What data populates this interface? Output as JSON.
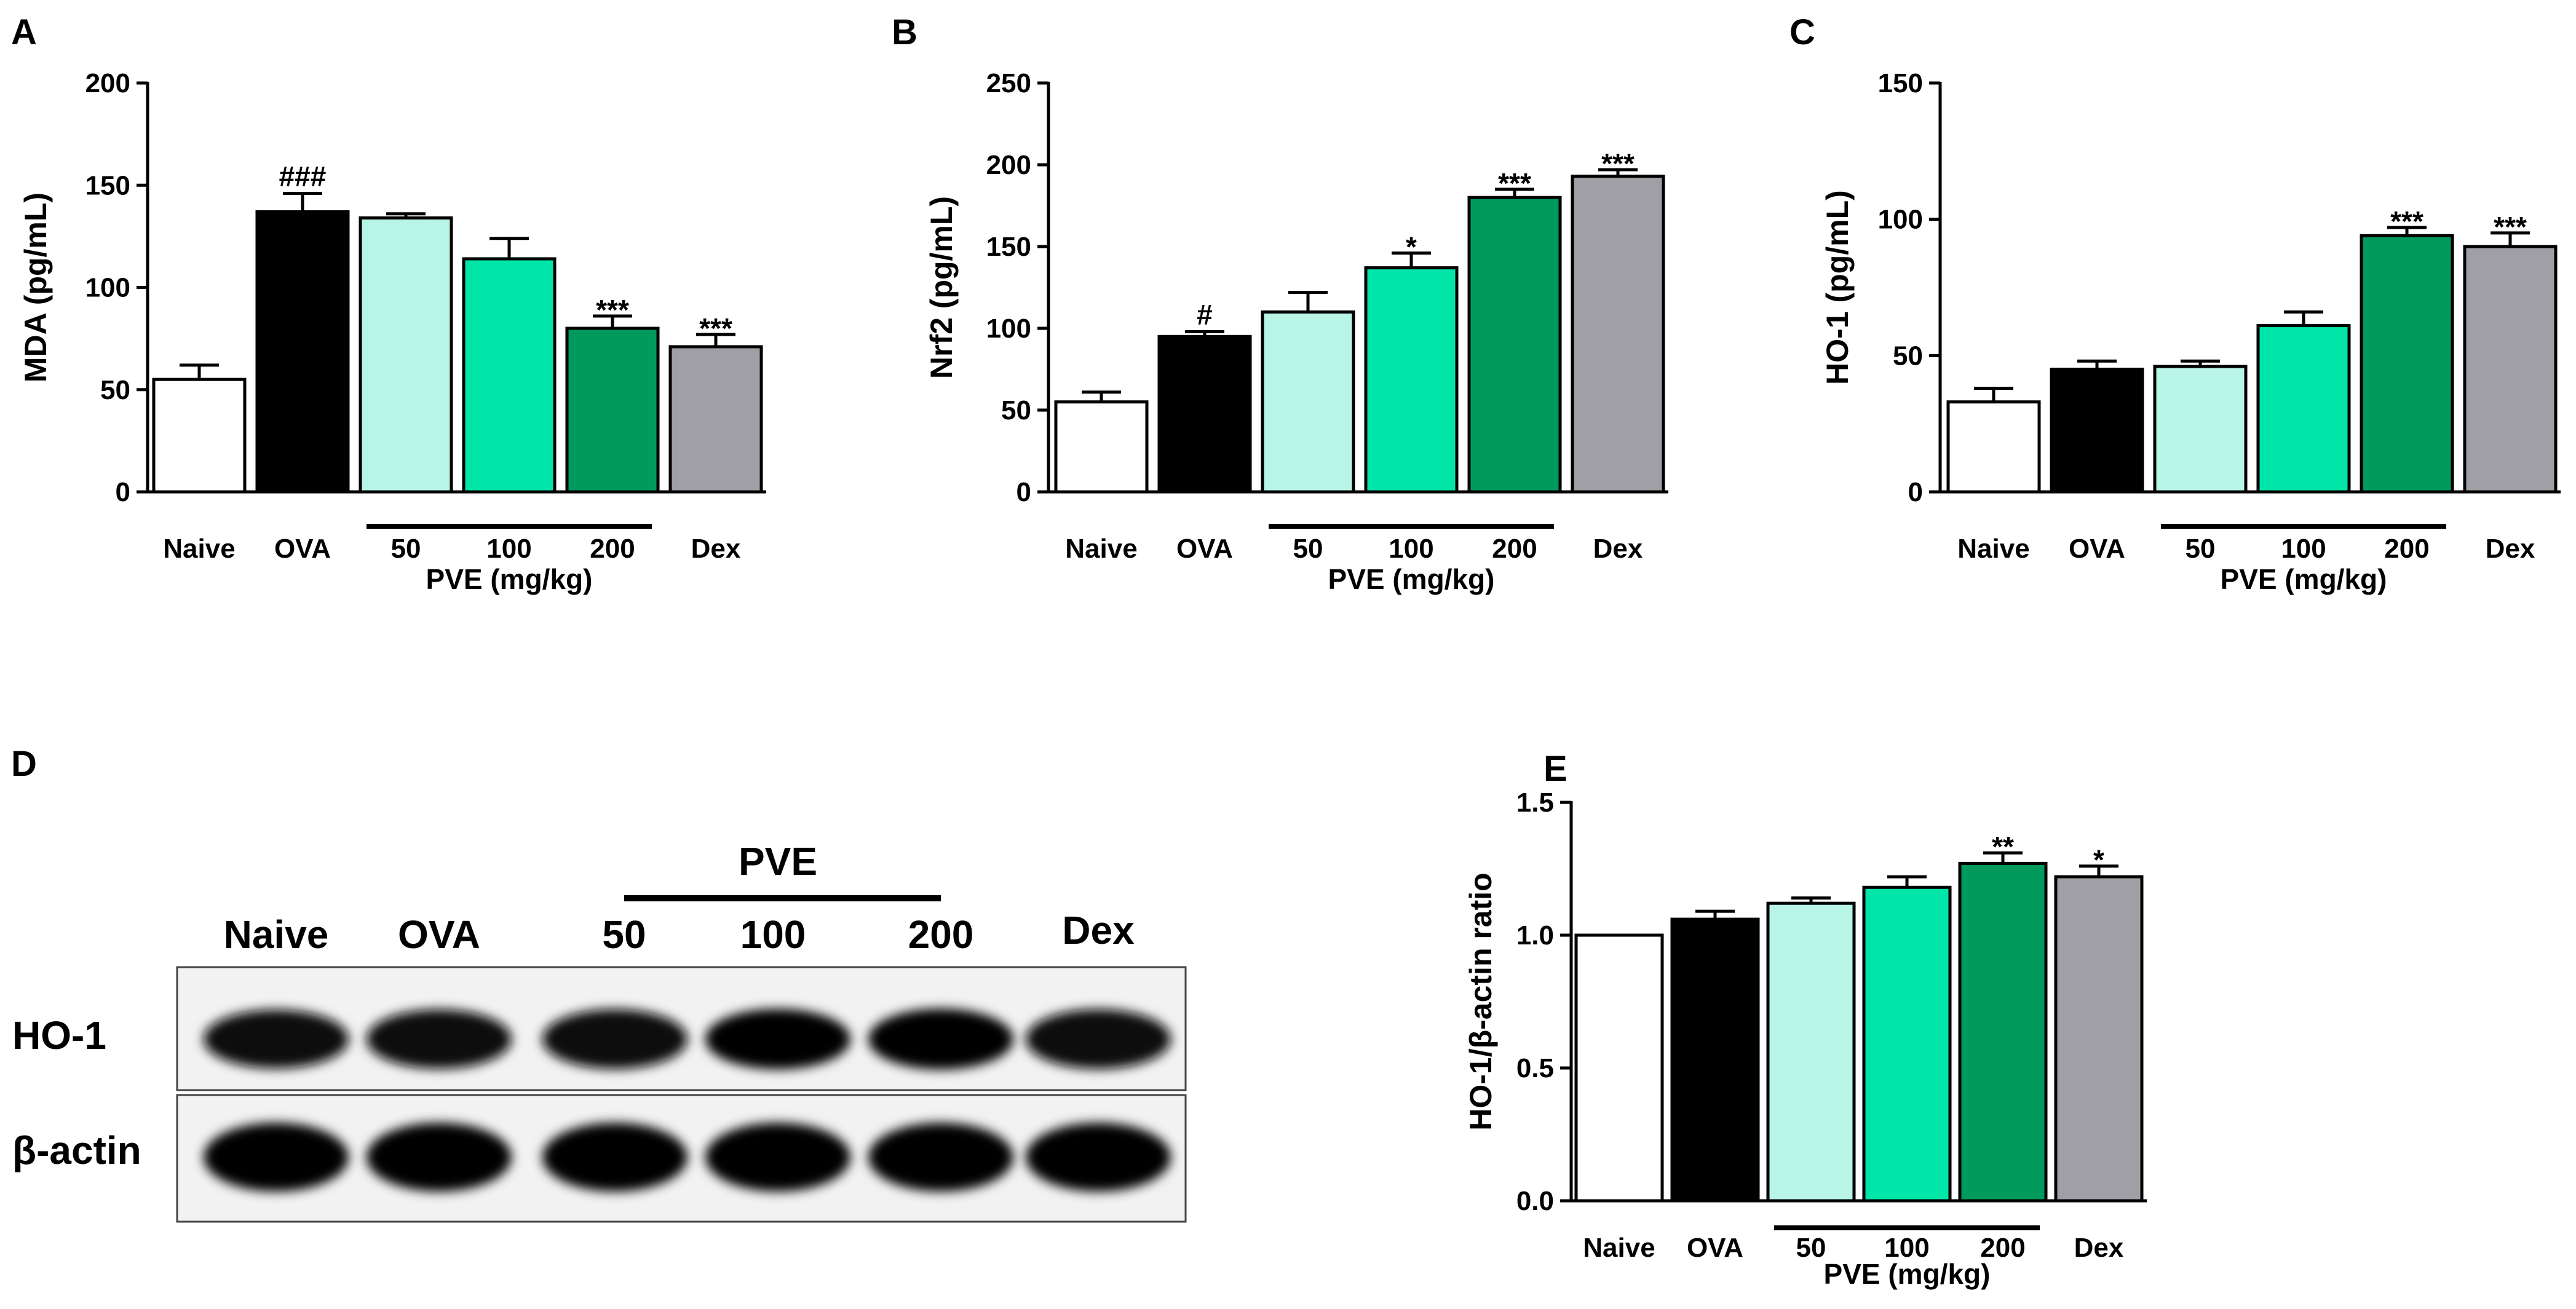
{
  "chart_data": [
    {
      "panel": "A",
      "type": "bar",
      "categories": [
        "Naive",
        "OVA",
        "50",
        "100",
        "200",
        "Dex"
      ],
      "values": [
        55,
        137,
        134,
        114,
        80,
        71
      ],
      "errors": [
        7,
        9,
        2,
        10,
        6,
        6
      ],
      "significance": [
        "",
        "###",
        "",
        "",
        "***",
        "***"
      ],
      "ylabel": "MDA (pg/mL)",
      "ylim": [
        0,
        200
      ],
      "yticks": [
        "0",
        "50",
        "100",
        "150",
        "200"
      ],
      "group_label": "PVE (mg/kg)",
      "grid": false,
      "colors": [
        "#ffffff",
        "#000000",
        "#b8f5e6",
        "#00e6a8",
        "#009a5c",
        "#a09fa6"
      ]
    },
    {
      "panel": "B",
      "type": "bar",
      "categories": [
        "Naive",
        "OVA",
        "50",
        "100",
        "200",
        "Dex"
      ],
      "values": [
        55,
        95,
        110,
        137,
        180,
        193
      ],
      "errors": [
        6,
        3,
        12,
        9,
        5,
        4
      ],
      "significance": [
        "",
        "#",
        "",
        "*",
        "***",
        "***"
      ],
      "ylabel": "Nrf2 (pg/mL)",
      "ylim": [
        0,
        250
      ],
      "yticks": [
        "0",
        "50",
        "100",
        "150",
        "200",
        "250"
      ],
      "group_label": "PVE (mg/kg)",
      "grid": false,
      "colors": [
        "#ffffff",
        "#000000",
        "#b8f5e6",
        "#00e6a8",
        "#009a5c",
        "#a09fa6"
      ]
    },
    {
      "panel": "C",
      "type": "bar",
      "categories": [
        "Naive",
        "OVA",
        "50",
        "100",
        "200",
        "Dex"
      ],
      "values": [
        33,
        45,
        46,
        61,
        94,
        90
      ],
      "errors": [
        5,
        3,
        2,
        5,
        3,
        5
      ],
      "significance": [
        "",
        "",
        "",
        "",
        "***",
        "***"
      ],
      "ylabel": "HO-1 (pg/mL)",
      "ylim": [
        0,
        150
      ],
      "yticks": [
        "0",
        "50",
        "100",
        "150"
      ],
      "group_label": "PVE (mg/kg)",
      "grid": false,
      "colors": [
        "#ffffff",
        "#000000",
        "#b8f5e6",
        "#00e6a8",
        "#009a5c",
        "#a09fa6"
      ]
    },
    {
      "panel": "E",
      "type": "bar",
      "categories": [
        "Naive",
        "OVA",
        "50",
        "100",
        "200",
        "Dex"
      ],
      "values": [
        1.0,
        1.06,
        1.12,
        1.18,
        1.27,
        1.22
      ],
      "errors": [
        0,
        0.03,
        0.02,
        0.04,
        0.04,
        0.04
      ],
      "significance": [
        "",
        "",
        "",
        "",
        "**",
        "*"
      ],
      "ylabel": "HO-1/β-actin ratio",
      "ylim": [
        0,
        1.5
      ],
      "yticks": [
        "0.0",
        "0.5",
        "1.0",
        "1.5"
      ],
      "group_label": "PVE (mg/kg)",
      "grid": false,
      "colors": [
        "#ffffff",
        "#000000",
        "#b8f5e6",
        "#00e6a8",
        "#009a5c",
        "#a09fa6"
      ]
    }
  ],
  "blot": {
    "panel": "D",
    "pve_label": "PVE",
    "lanes": [
      "Naive",
      "OVA",
      "50",
      "100",
      "200",
      "Dex"
    ],
    "rows": [
      {
        "label": "HO-1",
        "intensity": [
          0.8,
          0.84,
          0.86,
          0.9,
          0.93,
          0.86
        ]
      },
      {
        "label": "β-actin",
        "intensity": [
          0.9,
          0.9,
          0.9,
          0.9,
          0.9,
          0.9
        ]
      }
    ]
  }
}
